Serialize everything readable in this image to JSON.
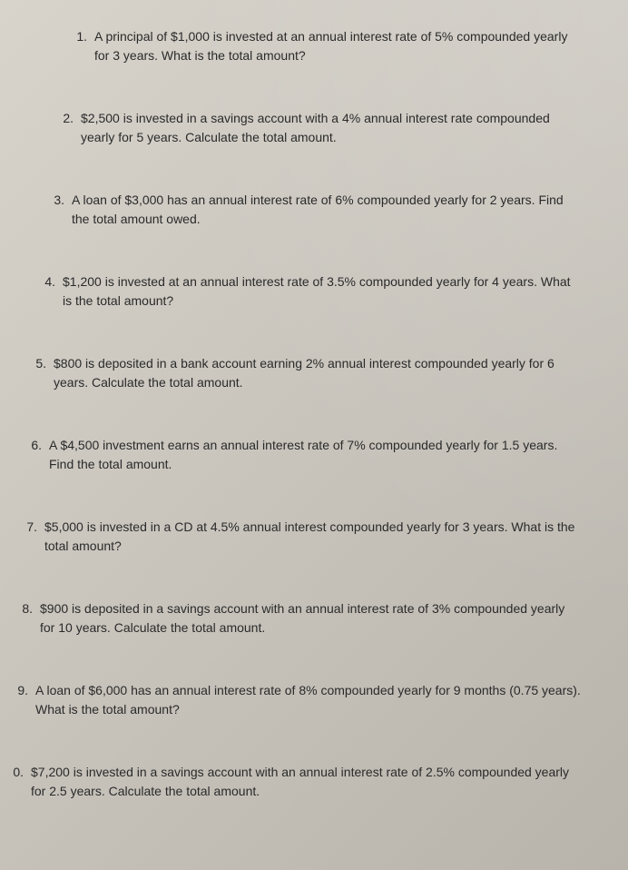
{
  "questions": [
    {
      "number": "1.",
      "text": "A principal of $1,000 is invested at an annual interest rate of 5% compounded yearly for 3 years. What is the total amount?",
      "indent": "indent-1"
    },
    {
      "number": "2.",
      "text": "$2,500 is invested in a savings account with a 4% annual interest rate compounded yearly for 5 years. Calculate the total amount.",
      "indent": "indent-2"
    },
    {
      "number": "3.",
      "text": "A loan of $3,000 has an annual interest rate of 6% compounded yearly for 2 years. Find the total amount owed.",
      "indent": "indent-3"
    },
    {
      "number": "4.",
      "text": "$1,200 is invested at an annual interest rate of 3.5% compounded yearly for 4 years. What is the total amount?",
      "indent": "indent-4"
    },
    {
      "number": "5.",
      "text": "$800 is deposited in a bank account earning 2% annual interest compounded yearly for 6 years. Calculate the total amount.",
      "indent": "indent-5"
    },
    {
      "number": "6.",
      "text": "A $4,500 investment earns an annual interest rate of 7% compounded yearly for 1.5 years. Find the total amount.",
      "indent": "indent-6"
    },
    {
      "number": "7.",
      "text": "$5,000 is invested in a CD at 4.5% annual interest compounded yearly for 3 years. What is the total amount?",
      "indent": "indent-7"
    },
    {
      "number": "8.",
      "text": "$900 is deposited in a savings account with an annual interest rate of 3% compounded yearly for 10 years. Calculate the total amount.",
      "indent": "indent-8"
    },
    {
      "number": "9.",
      "text": "A loan of $6,000 has an annual interest rate of 8% compounded yearly for 9 months (0.75 years). What is the total amount?",
      "indent": "indent-9"
    },
    {
      "number": "0.",
      "text": "$7,200 is invested in a savings account with an annual interest rate of 2.5% compounded yearly for 2.5 years. Calculate the total amount.",
      "indent": "indent-10"
    }
  ]
}
